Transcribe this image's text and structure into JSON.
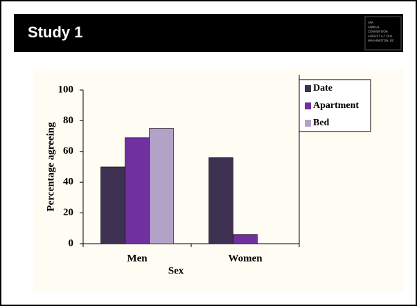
{
  "header": {
    "title": "Study 1",
    "logo": [
      "APA",
      "ANNUAL",
      "CONVENTION",
      "AUGUST 4-7 2011",
      "WASHINGTON, DC"
    ]
  },
  "chart_data": {
    "type": "bar",
    "x_label": "Sex",
    "y_label": "Percentage agreeing",
    "categories": [
      "Men",
      "Women"
    ],
    "series": [
      {
        "name": "Date",
        "color": "#3f3152",
        "values": [
          50,
          56
        ]
      },
      {
        "name": "Apartment",
        "color": "#7030a0",
        "values": [
          69,
          6
        ]
      },
      {
        "name": "Bed",
        "color": "#b3a2c7",
        "values": [
          75,
          0
        ]
      }
    ],
    "ylim": [
      0,
      100
    ],
    "yticks": [
      0,
      20,
      40,
      60,
      80,
      100
    ],
    "grid": false,
    "legend": "right"
  }
}
